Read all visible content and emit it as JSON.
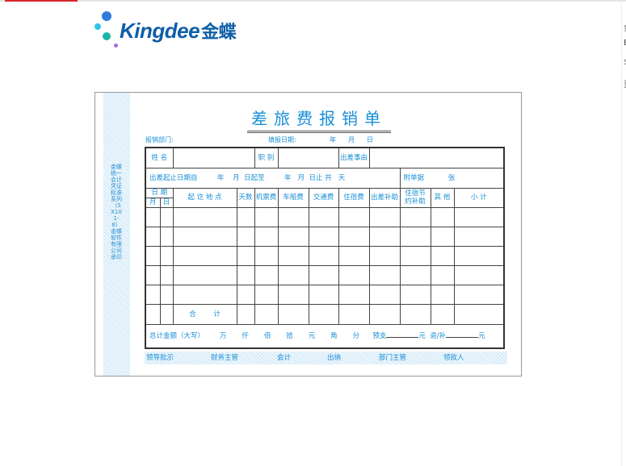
{
  "brand": {
    "name": "Kingdee",
    "name_cn": "金蝶",
    "colors": {
      "primary": "#0f5ea8",
      "accent": "#d9262c"
    }
  },
  "form": {
    "title": "差旅费报销单",
    "side_text": "金蝶统一会计凭证标准系列（SX101-8）金蝶软件有限公司承印",
    "dept_label": "报销部门:",
    "date_label": "填报日期:",
    "date_units": [
      "年",
      "月",
      "日"
    ],
    "row1": {
      "name": "姓  名",
      "position": "职  别",
      "reason": "出差事由"
    },
    "row2": {
      "period": "出差起止日期自",
      "y1": "年",
      "m1": "月",
      "d1": "日起至",
      "y2": "年",
      "m2": "月",
      "d2": "日止 共",
      "days": "天",
      "attach": "附单据",
      "sheets": "张"
    },
    "headers": {
      "date": "日 期",
      "month": "月",
      "day": "日",
      "route": "起  讫  地  点",
      "days": "天数",
      "air": "机票费",
      "vehicle": "车船费",
      "transport": "交通费",
      "lodging": "住宿费",
      "allowance": "出差补助",
      "saving": "住宿节约补助",
      "other": "其 他",
      "subtotal": "小    计"
    },
    "total_label": "合        计",
    "amount": {
      "label": "总计金额（大写）",
      "units": [
        "万",
        "仟",
        "佰",
        "拾",
        "元",
        "角",
        "分"
      ],
      "advance": "预支",
      "yuan": "元",
      "refund": "退/补"
    },
    "signatures": [
      "领导批示",
      "财务主管",
      "会计",
      "出纳",
      "部门主管",
      "领款人"
    ]
  },
  "right_edge_chars": [
    "金",
    "E",
    "字",
    "页"
  ]
}
